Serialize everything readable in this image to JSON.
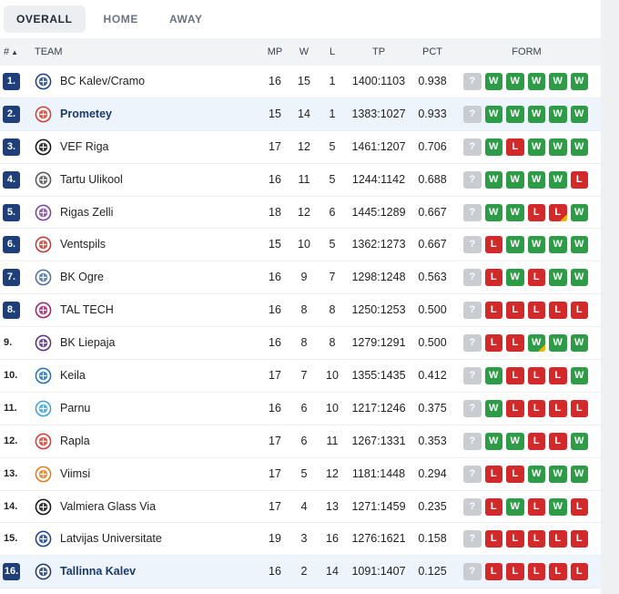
{
  "tabs": [
    {
      "label": "OVERALL",
      "active": true
    },
    {
      "label": "HOME",
      "active": false
    },
    {
      "label": "AWAY",
      "active": false
    }
  ],
  "columns": {
    "rank": "#",
    "sort_arrow": "▲",
    "team": "TEAM",
    "mp": "MP",
    "w": "W",
    "l": "L",
    "tp": "TP",
    "pct": "PCT",
    "form": "FORM"
  },
  "colors": {
    "accent": "#1f3f7a",
    "win": "#2e9b46",
    "loss": "#d22a2a",
    "unknown": "#c9ccd1",
    "highlight_row": "#eef4fc"
  },
  "rows": [
    {
      "rank": "1.",
      "team": "BC Kalev/Cramo",
      "mp": "16",
      "w": "15",
      "l": "1",
      "tp": "1400:1103",
      "pct": "0.938",
      "badge": true,
      "highlight": false,
      "logo_color": "#1b3f8f",
      "form": [
        "?",
        "W",
        "W",
        "W",
        "W",
        "W"
      ]
    },
    {
      "rank": "2.",
      "team": "Prometey",
      "mp": "15",
      "w": "14",
      "l": "1",
      "tp": "1383:1027",
      "pct": "0.933",
      "badge": true,
      "highlight": true,
      "logo_color": "#d63a2f",
      "form": [
        "?",
        "W",
        "W",
        "W",
        "W",
        "W"
      ]
    },
    {
      "rank": "3.",
      "team": "VEF Riga",
      "mp": "17",
      "w": "12",
      "l": "5",
      "tp": "1461:1207",
      "pct": "0.706",
      "badge": true,
      "highlight": false,
      "logo_color": "#111111",
      "form": [
        "?",
        "W",
        "L",
        "W",
        "W",
        "W"
      ]
    },
    {
      "rank": "4.",
      "team": "Tartu Ulikool",
      "mp": "16",
      "w": "11",
      "l": "5",
      "tp": "1244:1142",
      "pct": "0.688",
      "badge": true,
      "highlight": false,
      "logo_color": "#555555",
      "form": [
        "?",
        "W",
        "W",
        "W",
        "W",
        "L"
      ]
    },
    {
      "rank": "5.",
      "team": "Rigas Zelli",
      "mp": "18",
      "w": "12",
      "l": "6",
      "tp": "1445:1289",
      "pct": "0.667",
      "badge": true,
      "highlight": false,
      "logo_color": "#7b3fa0",
      "form": [
        "?",
        "W",
        "W",
        "L",
        "L*",
        "W"
      ]
    },
    {
      "rank": "6.",
      "team": "Ventspils",
      "mp": "15",
      "w": "10",
      "l": "5",
      "tp": "1362:1273",
      "pct": "0.667",
      "badge": true,
      "highlight": false,
      "logo_color": "#c0392b",
      "form": [
        "?",
        "L",
        "W",
        "W",
        "W",
        "W"
      ]
    },
    {
      "rank": "7.",
      "team": "BK Ogre",
      "mp": "16",
      "w": "9",
      "l": "7",
      "tp": "1298:1248",
      "pct": "0.563",
      "badge": true,
      "highlight": false,
      "logo_color": "#4a6fa5",
      "form": [
        "?",
        "L",
        "W",
        "L",
        "W",
        "W"
      ]
    },
    {
      "rank": "8.",
      "team": "TAL TECH",
      "mp": "16",
      "w": "8",
      "l": "8",
      "tp": "1250:1253",
      "pct": "0.500",
      "badge": true,
      "highlight": false,
      "logo_color": "#a01e6e",
      "form": [
        "?",
        "L",
        "L",
        "L",
        "L",
        "L"
      ]
    },
    {
      "rank": "9.",
      "team": "BK Liepaja",
      "mp": "16",
      "w": "8",
      "l": "8",
      "tp": "1279:1291",
      "pct": "0.500",
      "badge": false,
      "highlight": false,
      "logo_color": "#5a2d82",
      "form": [
        "?",
        "L",
        "L",
        "W*",
        "W",
        "W"
      ]
    },
    {
      "rank": "10.",
      "team": "Keila",
      "mp": "17",
      "w": "7",
      "l": "10",
      "tp": "1355:1435",
      "pct": "0.412",
      "badge": false,
      "highlight": false,
      "logo_color": "#1f6fb5",
      "form": [
        "?",
        "W",
        "L",
        "L",
        "L",
        "W"
      ]
    },
    {
      "rank": "11.",
      "team": "Parnu",
      "mp": "16",
      "w": "6",
      "l": "10",
      "tp": "1217:1246",
      "pct": "0.375",
      "badge": false,
      "highlight": false,
      "logo_color": "#3aa0d8",
      "form": [
        "?",
        "W",
        "L",
        "L",
        "L",
        "L"
      ]
    },
    {
      "rank": "12.",
      "team": "Rapla",
      "mp": "17",
      "w": "6",
      "l": "11",
      "tp": "1267:1331",
      "pct": "0.353",
      "badge": false,
      "highlight": false,
      "logo_color": "#d63a2f",
      "form": [
        "?",
        "W",
        "W",
        "L",
        "L",
        "W"
      ]
    },
    {
      "rank": "13.",
      "team": "Viimsi",
      "mp": "17",
      "w": "5",
      "l": "12",
      "tp": "1181:1448",
      "pct": "0.294",
      "badge": false,
      "highlight": false,
      "logo_color": "#e07a1f",
      "form": [
        "?",
        "L",
        "L",
        "W",
        "W",
        "W"
      ]
    },
    {
      "rank": "14.",
      "team": "Valmiera Glass Via",
      "mp": "17",
      "w": "4",
      "l": "13",
      "tp": "1271:1459",
      "pct": "0.235",
      "badge": false,
      "highlight": false,
      "logo_color": "#111111",
      "form": [
        "?",
        "L",
        "W",
        "L",
        "W",
        "L"
      ]
    },
    {
      "rank": "15.",
      "team": "Latvijas Universitate",
      "mp": "19",
      "w": "3",
      "l": "16",
      "tp": "1276:1621",
      "pct": "0.158",
      "badge": false,
      "highlight": false,
      "logo_color": "#1b3f8f",
      "form": [
        "?",
        "L",
        "L",
        "L",
        "L",
        "L"
      ]
    },
    {
      "rank": "16.",
      "team": "Tallinna Kalev",
      "mp": "16",
      "w": "2",
      "l": "14",
      "tp": "1091:1407",
      "pct": "0.125",
      "badge": true,
      "highlight": true,
      "logo_color": "#1a3a6b",
      "form": [
        "?",
        "L",
        "L",
        "L",
        "L",
        "L"
      ]
    }
  ]
}
